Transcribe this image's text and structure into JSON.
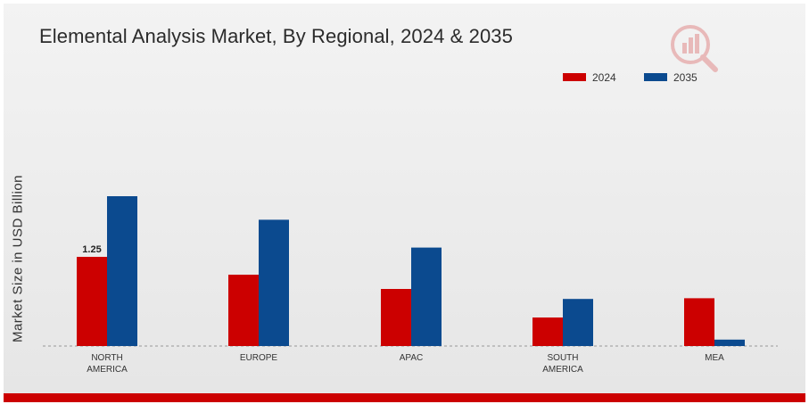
{
  "colors": {
    "series_2024": "#cc0000",
    "series_2035": "#0b4a8f",
    "baseline": "#999999",
    "accent_bar": "#cc0000"
  },
  "chart_data": {
    "type": "bar",
    "title": "Elemental Analysis Market, By Regional, 2024 & 2035",
    "ylabel": "Market Size in USD Billion",
    "xlabel": "",
    "categories": [
      "NORTH\nAMERICA",
      "EUROPE",
      "APAC",
      "SOUTH\nAMERICA",
      "MEA"
    ],
    "series": [
      {
        "name": "2024",
        "values": [
          1.25,
          1.0,
          0.8,
          0.4,
          0.67
        ]
      },
      {
        "name": "2035",
        "values": [
          2.1,
          1.77,
          1.38,
          0.66,
          0.09
        ]
      }
    ],
    "data_labels": [
      {
        "series": 0,
        "category": 0,
        "text": "1.25"
      }
    ],
    "ylim": [
      0,
      3.6
    ],
    "legend": "top-right",
    "grid": false
  },
  "logo": {
    "icon": "chart-magnifier-logo-icon"
  }
}
